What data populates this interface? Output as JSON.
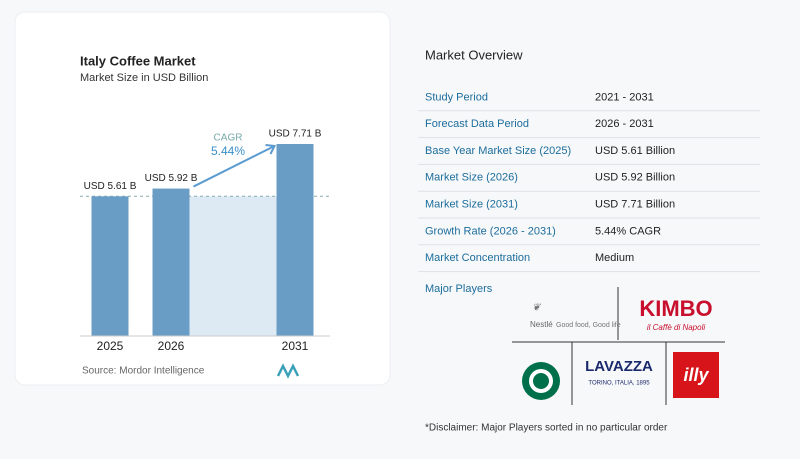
{
  "chart_data": {
    "type": "bar",
    "title": "Italy Coffee Market",
    "subtitle": "Market Size in USD Billion",
    "categories": [
      "2025",
      "2026",
      "2031"
    ],
    "values": [
      5.61,
      5.92,
      7.71
    ],
    "value_labels": [
      "USD 5.61 B",
      "USD 5.92 B",
      "USD 7.71 B"
    ],
    "color": "#6a9dc6",
    "annotation": {
      "label": "CAGR",
      "value": "5.44%"
    },
    "source": "Source:  Mordor Intelligence"
  },
  "overview": {
    "title": "Market Overview",
    "rows": [
      [
        "Study Period",
        "2021 - 2031"
      ],
      [
        "Forecast Data Period",
        "2026 - 2031"
      ],
      [
        "Base Year Market Size (2025)",
        "USD 5.61 Billion"
      ],
      [
        "Market Size (2026)",
        "USD 5.92 Billion"
      ],
      [
        "Market Size (2031)",
        "USD 7.71 Billion"
      ],
      [
        "Growth Rate (2026 - 2031)",
        "5.44% CAGR"
      ],
      [
        "Market Concentration",
        "Medium"
      ]
    ]
  },
  "players": {
    "title": "Major Players",
    "nestle": "Nestlé",
    "nestle_tag": "Good food, Good life",
    "kimbo": "KIMBO",
    "kimbo_tag": "il Caffè di Napoli",
    "lavazza": "LAVAZZA",
    "lavazza_tag": "TORINO, ITALIA, 1895",
    "illy": "illy"
  },
  "disclaimer": "*Disclaimer: Major Players sorted in no particular order"
}
